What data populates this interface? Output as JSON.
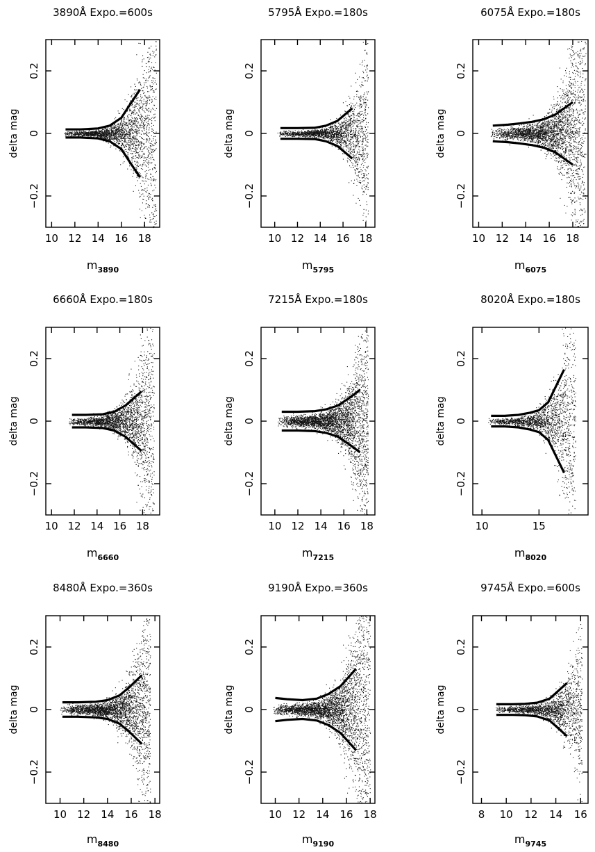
{
  "chart_data": [
    {
      "type": "scatter",
      "title": "3890Å   Expo.=600s",
      "xlabel": "m",
      "xlabel_sub": "3890",
      "ylabel": "delta mag",
      "xlim": [
        9.5,
        19.3
      ],
      "ylim": [
        -0.3,
        0.3
      ],
      "xticks": [
        10,
        12,
        14,
        16,
        18
      ],
      "yticks": [
        -0.2,
        0,
        0.2
      ],
      "ytick_labels": [
        "−0.2",
        "0",
        "0.2"
      ],
      "scatter": {
        "x_start": 11.0,
        "x_end": 19.0,
        "n_points": 2400,
        "sigma_base": 0.006,
        "sigma_scale": 0.032,
        "m_ref": 15.5
      },
      "envelope": {
        "x": [
          11.2,
          12.5,
          14,
          15,
          16,
          16.7,
          17.6
        ],
        "y": [
          0.013,
          0.013,
          0.016,
          0.025,
          0.05,
          0.09,
          0.14
        ]
      },
      "grid": false,
      "legend": "none"
    },
    {
      "type": "scatter",
      "title": "5795Å   Expo.=180s",
      "xlabel": "m",
      "xlabel_sub": "5795",
      "ylabel": "delta mag",
      "xlim": [
        8.8,
        18.8
      ],
      "ylim": [
        -0.3,
        0.3
      ],
      "xticks": [
        10,
        12,
        14,
        16,
        18
      ],
      "yticks": [
        -0.2,
        0,
        0.2
      ],
      "ytick_labels": [
        "−0.2",
        "0",
        "0.2"
      ],
      "scatter": {
        "x_start": 10.2,
        "x_end": 18.2,
        "n_points": 2000,
        "sigma_base": 0.007,
        "sigma_scale": 0.022,
        "m_ref": 15.0
      },
      "envelope": {
        "x": [
          10.5,
          12,
          13.5,
          14.5,
          15.5,
          16.8
        ],
        "y": [
          0.017,
          0.017,
          0.018,
          0.025,
          0.04,
          0.08
        ]
      },
      "grid": false,
      "legend": "none"
    },
    {
      "type": "scatter",
      "title": "6075Å   Expo.=180s",
      "xlabel": "m",
      "xlabel_sub": "6075",
      "ylabel": "delta mag",
      "xlim": [
        9.5,
        19.3
      ],
      "ylim": [
        -0.3,
        0.3
      ],
      "xticks": [
        10,
        12,
        14,
        16,
        18
      ],
      "yticks": [
        -0.2,
        0,
        0.2
      ],
      "ytick_labels": [
        "−0.2",
        "0",
        "0.2"
      ],
      "scatter": {
        "x_start": 11.0,
        "x_end": 19.1,
        "n_points": 3000,
        "sigma_base": 0.018,
        "sigma_scale": 0.03,
        "m_ref": 15.5
      },
      "envelope": {
        "x": [
          11.2,
          12.5,
          13.5,
          14.5,
          15.5,
          16.5,
          18
        ],
        "y": [
          0.025,
          0.028,
          0.032,
          0.037,
          0.045,
          0.06,
          0.1
        ]
      },
      "grid": false,
      "legend": "none"
    },
    {
      "type": "scatter",
      "title": "6660Å   Expo.=180s",
      "xlabel": "m",
      "xlabel_sub": "6660",
      "ylabel": "delta mag",
      "xlim": [
        9.5,
        19.5
      ],
      "ylim": [
        -0.3,
        0.3
      ],
      "xticks": [
        10,
        12,
        14,
        16,
        18
      ],
      "yticks": [
        -0.2,
        0,
        0.2
      ],
      "ytick_labels": [
        "−0.2",
        "0",
        "0.2"
      ],
      "scatter": {
        "x_start": 11.5,
        "x_end": 19.0,
        "n_points": 2400,
        "sigma_base": 0.01,
        "sigma_scale": 0.025,
        "m_ref": 15.5
      },
      "envelope": {
        "x": [
          11.8,
          13,
          14.5,
          15.5,
          16.5,
          17.9
        ],
        "y": [
          0.02,
          0.02,
          0.022,
          0.03,
          0.05,
          0.095
        ]
      },
      "grid": false,
      "legend": "none"
    },
    {
      "type": "scatter",
      "title": "7215Å   Expo.=180s",
      "xlabel": "m",
      "xlabel_sub": "7215",
      "ylabel": "delta mag",
      "xlim": [
        8.8,
        18.7
      ],
      "ylim": [
        -0.3,
        0.3
      ],
      "xticks": [
        10,
        12,
        14,
        16,
        18
      ],
      "yticks": [
        -0.2,
        0,
        0.2
      ],
      "ytick_labels": [
        "−0.2",
        "0",
        "0.2"
      ],
      "scatter": {
        "x_start": 10.2,
        "x_end": 18.1,
        "n_points": 3200,
        "sigma_base": 0.016,
        "sigma_scale": 0.03,
        "m_ref": 15.0
      },
      "envelope": {
        "x": [
          10.6,
          12,
          13.5,
          14.5,
          15.5,
          16.5,
          17.4
        ],
        "y": [
          0.03,
          0.03,
          0.032,
          0.038,
          0.05,
          0.075,
          0.1
        ]
      },
      "grid": false,
      "legend": "none"
    },
    {
      "type": "scatter",
      "title": "8020Å   Expo.=180s",
      "xlabel": "m",
      "xlabel_sub": "8020",
      "ylabel": "delta mag",
      "xlim": [
        9.2,
        19.3
      ],
      "ylim": [
        -0.3,
        0.3
      ],
      "xticks": [
        10,
        15
      ],
      "yticks": [
        -0.2,
        0,
        0.2
      ],
      "ytick_labels": [
        "−0.2",
        "0",
        "0.2"
      ],
      "scatter": {
        "x_start": 10.5,
        "x_end": 18.2,
        "n_points": 1800,
        "sigma_base": 0.008,
        "sigma_scale": 0.03,
        "m_ref": 15.0
      },
      "envelope": {
        "x": [
          10.8,
          12,
          13.2,
          14.2,
          15,
          15.8,
          17.2
        ],
        "y": [
          0.017,
          0.017,
          0.02,
          0.027,
          0.035,
          0.06,
          0.165
        ]
      },
      "grid": false,
      "legend": "none"
    },
    {
      "type": "scatter",
      "title": "8480Å   Expo.=360s",
      "xlabel": "m",
      "xlabel_sub": "8480",
      "ylabel": "delta mag",
      "xlim": [
        8.8,
        18.4
      ],
      "ylim": [
        -0.3,
        0.3
      ],
      "xticks": [
        10,
        12,
        14,
        16,
        18
      ],
      "yticks": [
        -0.2,
        0,
        0.2
      ],
      "ytick_labels": [
        "−0.2",
        "0",
        "0.2"
      ],
      "scatter": {
        "x_start": 10.0,
        "x_end": 17.6,
        "n_points": 2800,
        "sigma_base": 0.012,
        "sigma_scale": 0.03,
        "m_ref": 14.5
      },
      "envelope": {
        "x": [
          10.2,
          11.5,
          13,
          14,
          15,
          15.8,
          16.9
        ],
        "y": [
          0.023,
          0.023,
          0.025,
          0.03,
          0.045,
          0.07,
          0.11
        ]
      },
      "grid": false,
      "legend": "none"
    },
    {
      "type": "scatter",
      "title": "9190Å   Expo.=360s",
      "xlabel": "m",
      "xlabel_sub": "9190",
      "ylabel": "delta mag",
      "xlim": [
        8.8,
        18.4
      ],
      "ylim": [
        -0.3,
        0.3
      ],
      "xticks": [
        10,
        12,
        14,
        16,
        18
      ],
      "yticks": [
        -0.2,
        0,
        0.2
      ],
      "ytick_labels": [
        "−0.2",
        "0",
        "0.2"
      ],
      "scatter": {
        "x_start": 9.8,
        "x_end": 18.0,
        "n_points": 3400,
        "sigma_base": 0.014,
        "sigma_scale": 0.035,
        "m_ref": 14.5
      },
      "envelope": {
        "x": [
          10,
          11,
          12.3,
          13.5,
          14.5,
          15.5,
          16.8
        ],
        "y": [
          0.037,
          0.033,
          0.03,
          0.035,
          0.05,
          0.075,
          0.13
        ]
      },
      "grid": false,
      "legend": "none"
    },
    {
      "type": "scatter",
      "title": "9745Å   Expo.=600s",
      "xlabel": "m",
      "xlabel_sub": "9745",
      "ylabel": "delta mag",
      "xlim": [
        7.3,
        16.6
      ],
      "ylim": [
        -0.3,
        0.3
      ],
      "xticks": [
        8,
        10,
        12,
        14,
        16
      ],
      "yticks": [
        -0.2,
        0,
        0.2
      ],
      "ytick_labels": [
        "−0.2",
        "0",
        "0.2"
      ],
      "scatter": {
        "x_start": 9.0,
        "x_end": 16.1,
        "n_points": 1800,
        "sigma_base": 0.008,
        "sigma_scale": 0.028,
        "m_ref": 13.5
      },
      "envelope": {
        "x": [
          9.2,
          10.5,
          11.5,
          12.5,
          13.5,
          14.9
        ],
        "y": [
          0.017,
          0.017,
          0.018,
          0.022,
          0.035,
          0.085
        ]
      },
      "grid": false,
      "legend": "none"
    }
  ]
}
